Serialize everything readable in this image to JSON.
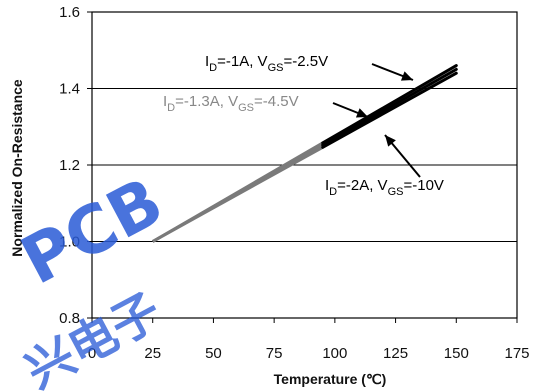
{
  "chart_data": {
    "type": "line",
    "xlabel": "Temperature (℃)",
    "ylabel": "Normalized On-Resistance",
    "xlim": [
      0,
      175
    ],
    "ylim": [
      0.8,
      1.6
    ],
    "x_ticks": [
      "0",
      "25",
      "50",
      "75",
      "100",
      "125",
      "150",
      "175"
    ],
    "y_ticks": [
      "0.8",
      "1.0",
      "1.2",
      "1.4",
      "1.6"
    ],
    "grid": true,
    "series": [
      {
        "name": "I_D=-1A, V_GS=-2.5V",
        "x": [
          25,
          150
        ],
        "y": [
          1.0,
          1.46
        ],
        "color": "#000000"
      },
      {
        "name": "I_D=-1.3A, V_GS=-4.5V",
        "x": [
          25,
          150
        ],
        "y": [
          1.0,
          1.45
        ],
        "color": "#000000"
      },
      {
        "name": "I_D=-2A, V_GS=-10V",
        "x": [
          25,
          150
        ],
        "y": [
          1.0,
          1.44
        ],
        "color": "#000000"
      }
    ],
    "annotations": [
      {
        "id": "a1",
        "sub1": "D",
        "pre": "I",
        "mid1": "=-1A, V",
        "sub2": "GS",
        "post": "=-2.5V",
        "color": "#000000"
      },
      {
        "id": "a2",
        "sub1": "D",
        "pre": "I",
        "mid1": "=-1.3A, V",
        "sub2": "GS",
        "post": "=-4.5V",
        "color": "#888888"
      },
      {
        "id": "a3",
        "sub1": "D",
        "pre": "I",
        "mid1": "=-2A, V",
        "sub2": "GS",
        "post": "=-10V",
        "color": "#000000"
      }
    ]
  },
  "watermark": {
    "logo_text": "PCB",
    "chinese_text": "兴电子",
    "color": "#2a5bd7"
  }
}
